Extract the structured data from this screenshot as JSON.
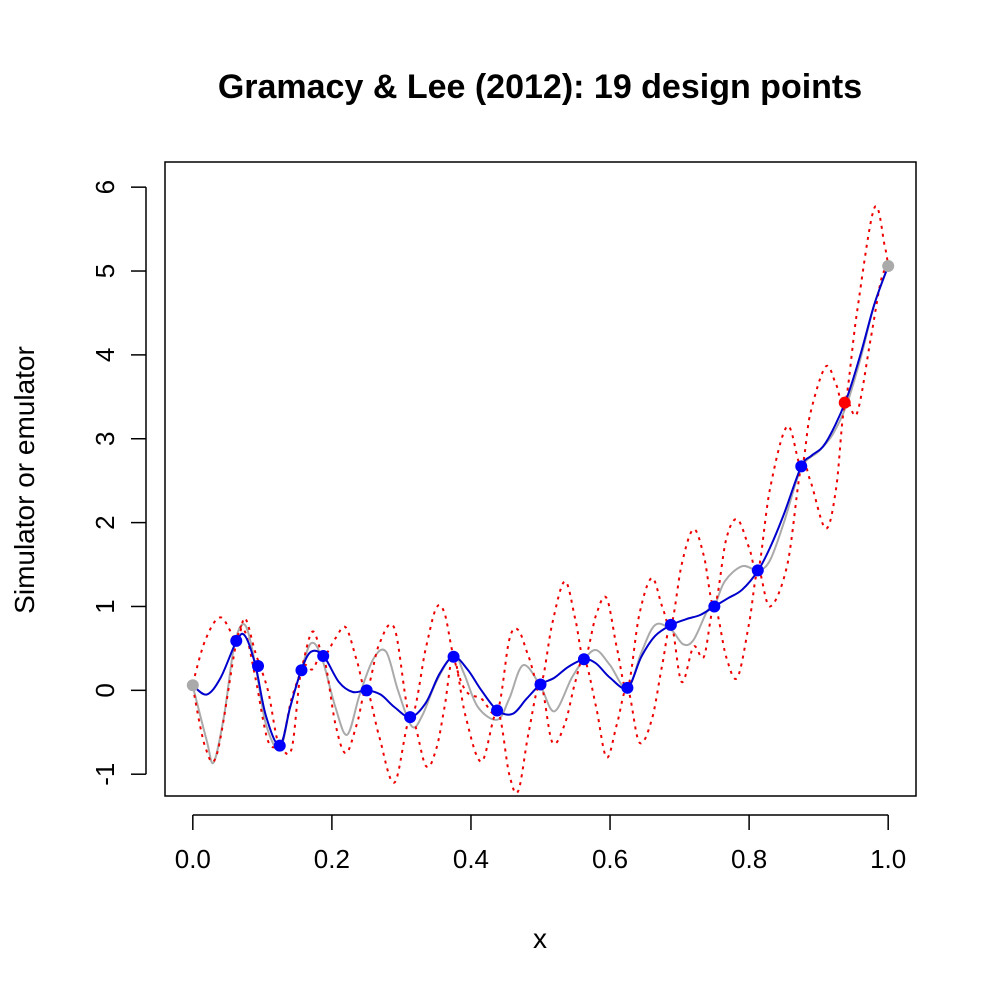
{
  "chart_data": {
    "type": "line",
    "title": "Gramacy & Lee (2012):  19 design points",
    "xlabel": "x",
    "ylabel": "Simulator or emulator",
    "xlim": [
      -0.04,
      1.04
    ],
    "ylim": [
      -1.26,
      6.3
    ],
    "x_ticks": [
      "0.0",
      "0.2",
      "0.4",
      "0.6",
      "0.8",
      "1.0"
    ],
    "y_ticks": [
      "-1",
      "0",
      "1",
      "2",
      "3",
      "4",
      "5",
      "6"
    ],
    "grid": false,
    "legend": "none",
    "colors": {
      "simulator": "#aaaaaa",
      "emulator_mean": "#0000cc",
      "emulator_band": "#ee0000",
      "design_point": "#0000ff",
      "new_point": "#ff0000",
      "endpoint": "#aaaaaa"
    },
    "series": [
      {
        "style": "solid-gray",
        "x": [
          0.0,
          0.02,
          0.03,
          0.045,
          0.06,
          0.075,
          0.09,
          0.105,
          0.125,
          0.14,
          0.155,
          0.17,
          0.185,
          0.205,
          0.222,
          0.24,
          0.26,
          0.278,
          0.295,
          0.315,
          0.33,
          0.35,
          0.375,
          0.39,
          0.41,
          0.438,
          0.455,
          0.475,
          0.5,
          0.52,
          0.545,
          0.563,
          0.58,
          0.6,
          0.625,
          0.645,
          0.665,
          0.688,
          0.705,
          0.72,
          0.74,
          0.75,
          0.765,
          0.79,
          0.813,
          0.83,
          0.85,
          0.875,
          0.9,
          0.92,
          0.94,
          0.96,
          0.98,
          1.0
        ],
        "y": [
          0.05,
          -0.6,
          -0.86,
          -0.3,
          0.55,
          0.78,
          0.3,
          -0.4,
          -0.7,
          -0.2,
          0.22,
          0.56,
          0.4,
          -0.2,
          -0.53,
          -0.05,
          0.38,
          0.46,
          0.0,
          -0.43,
          -0.3,
          0.1,
          0.42,
          0.2,
          -0.2,
          -0.35,
          -0.1,
          0.3,
          0.05,
          -0.25,
          0.15,
          0.37,
          0.48,
          0.3,
          0.02,
          0.45,
          0.78,
          0.72,
          0.55,
          0.6,
          0.95,
          1.0,
          1.3,
          1.48,
          1.43,
          1.55,
          2.0,
          2.65,
          2.85,
          3.05,
          3.4,
          3.95,
          4.6,
          5.06
        ]
      },
      {
        "style": "solid-blue",
        "x": [
          0.0,
          0.02,
          0.04,
          0.063,
          0.075,
          0.09,
          0.105,
          0.125,
          0.14,
          0.156,
          0.17,
          0.188,
          0.21,
          0.23,
          0.25,
          0.27,
          0.29,
          0.313,
          0.335,
          0.355,
          0.375,
          0.395,
          0.415,
          0.438,
          0.46,
          0.48,
          0.5,
          0.52,
          0.54,
          0.563,
          0.58,
          0.6,
          0.625,
          0.645,
          0.665,
          0.688,
          0.71,
          0.73,
          0.75,
          0.77,
          0.79,
          0.813,
          0.83,
          0.85,
          0.875,
          0.89,
          0.91,
          0.938,
          0.96,
          0.98,
          1.0
        ],
        "y": [
          0.06,
          -0.05,
          0.15,
          0.59,
          0.65,
          0.3,
          -0.3,
          -0.66,
          -0.2,
          0.24,
          0.46,
          0.41,
          0.1,
          -0.02,
          0.0,
          -0.05,
          -0.2,
          -0.32,
          -0.15,
          0.2,
          0.4,
          0.25,
          0.0,
          -0.24,
          -0.28,
          -0.1,
          0.07,
          0.15,
          0.28,
          0.37,
          0.32,
          0.15,
          0.03,
          0.4,
          0.65,
          0.78,
          0.85,
          0.9,
          1.0,
          1.1,
          1.2,
          1.43,
          1.7,
          2.1,
          2.67,
          2.8,
          2.95,
          3.43,
          4.0,
          4.6,
          5.06
        ]
      },
      {
        "style": "dotted-red-upper",
        "x": [
          0.0,
          0.018,
          0.04,
          0.063,
          0.075,
          0.09,
          0.108,
          0.125,
          0.142,
          0.156,
          0.172,
          0.188,
          0.205,
          0.22,
          0.236,
          0.25,
          0.268,
          0.29,
          0.313,
          0.335,
          0.35,
          0.362,
          0.375,
          0.392,
          0.415,
          0.438,
          0.455,
          0.468,
          0.483,
          0.5,
          0.517,
          0.535,
          0.55,
          0.563,
          0.58,
          0.595,
          0.61,
          0.625,
          0.642,
          0.66,
          0.675,
          0.688,
          0.703,
          0.72,
          0.735,
          0.75,
          0.767,
          0.783,
          0.8,
          0.813,
          0.83,
          0.855,
          0.875,
          0.888,
          0.91,
          0.925,
          0.938,
          0.955,
          0.98,
          0.995,
          1.0
        ],
        "y": [
          0.08,
          0.6,
          0.87,
          0.6,
          0.86,
          0.45,
          0.0,
          -0.65,
          -0.1,
          0.25,
          0.7,
          0.42,
          0.62,
          0.75,
          0.35,
          0.0,
          0.55,
          0.74,
          -0.32,
          0.5,
          0.98,
          0.92,
          0.4,
          0.0,
          -0.1,
          -0.25,
          0.6,
          0.72,
          0.4,
          0.06,
          0.8,
          1.3,
          0.85,
          0.37,
          0.9,
          1.1,
          0.5,
          0.02,
          0.9,
          1.34,
          1.0,
          0.78,
          1.5,
          1.92,
          1.6,
          1.0,
          1.8,
          2.04,
          1.7,
          1.43,
          2.4,
          3.15,
          2.67,
          3.3,
          3.86,
          3.65,
          3.42,
          4.5,
          5.75,
          5.3,
          5.06
        ]
      },
      {
        "style": "dotted-red-lower",
        "x": [
          0.0,
          0.018,
          0.035,
          0.063,
          0.075,
          0.09,
          0.108,
          0.125,
          0.142,
          0.156,
          0.172,
          0.188,
          0.205,
          0.22,
          0.236,
          0.25,
          0.268,
          0.29,
          0.313,
          0.335,
          0.35,
          0.362,
          0.375,
          0.392,
          0.415,
          0.438,
          0.455,
          0.468,
          0.483,
          0.5,
          0.517,
          0.535,
          0.55,
          0.563,
          0.58,
          0.595,
          0.61,
          0.625,
          0.642,
          0.66,
          0.675,
          0.688,
          0.703,
          0.72,
          0.735,
          0.75,
          0.767,
          0.783,
          0.8,
          0.813,
          0.83,
          0.855,
          0.875,
          0.888,
          0.91,
          0.925,
          0.938,
          0.955,
          0.975,
          0.99,
          1.0
        ],
        "y": [
          0.04,
          -0.68,
          -0.75,
          0.59,
          0.7,
          0.15,
          -0.6,
          -0.67,
          -0.7,
          0.24,
          0.25,
          0.4,
          -0.4,
          -0.75,
          -0.4,
          0.0,
          -0.55,
          -1.1,
          -0.32,
          -0.9,
          -0.7,
          -0.2,
          0.4,
          -0.3,
          -0.85,
          -0.25,
          -1.0,
          -1.2,
          -0.5,
          0.07,
          -0.62,
          -0.4,
          0.1,
          0.37,
          -0.2,
          -0.8,
          -0.4,
          0.02,
          -0.62,
          -0.35,
          0.3,
          0.78,
          0.1,
          0.52,
          0.4,
          1.0,
          0.4,
          0.15,
          0.8,
          1.43,
          1.0,
          1.5,
          2.67,
          2.5,
          1.93,
          2.4,
          3.43,
          3.3,
          4.2,
          4.9,
          5.06
        ]
      }
    ],
    "design_points": {
      "x": [
        0.0625,
        0.09375,
        0.125,
        0.15625,
        0.1875,
        0.25,
        0.3125,
        0.375,
        0.4375,
        0.5,
        0.5625,
        0.625,
        0.6875,
        0.75,
        0.8125,
        0.875
      ],
      "y": [
        0.59,
        0.29,
        -0.66,
        0.24,
        0.41,
        0.0,
        -0.32,
        0.4,
        -0.24,
        0.07,
        0.37,
        0.03,
        0.78,
        1.0,
        1.43,
        2.67
      ]
    },
    "new_point": {
      "x": [
        0.9375
      ],
      "y": [
        3.43
      ]
    },
    "endpoints": {
      "x": [
        0.0,
        1.0
      ],
      "y": [
        0.06,
        5.06
      ]
    }
  }
}
